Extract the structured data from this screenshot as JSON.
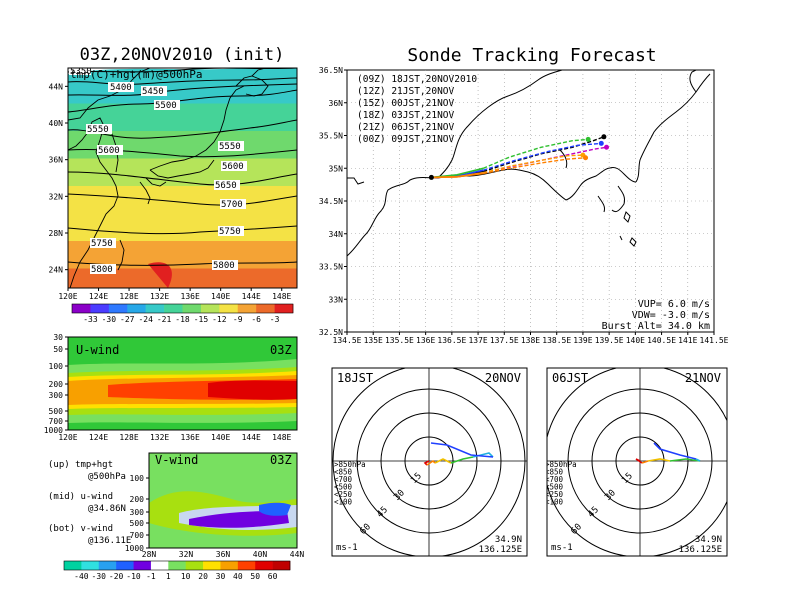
{
  "left_map": {
    "title": "03Z,20NOV2010 (init)",
    "overlay_label": "tmp(C)+hgt(m)@500hPa",
    "lon_ticks": [
      "120E",
      "124E",
      "128E",
      "132E",
      "136E",
      "140E",
      "144E",
      "148E"
    ],
    "lat_ticks": [
      "44N",
      "40N",
      "36N",
      "32N",
      "28N",
      "24N"
    ],
    "contour_labels": [
      "5350",
      "5400",
      "5450",
      "5500",
      "5550",
      "5600",
      "5550",
      "5600",
      "5650",
      "5700",
      "5750",
      "5750",
      "5800",
      "5800"
    ],
    "colorbar_ticks": [
      "-33",
      "-30",
      "-27",
      "-24",
      "-21",
      "-18",
      "-15",
      "-12",
      "-9",
      "-6",
      "-3"
    ],
    "colorbar_colors": [
      "#8b00c8",
      "#4b3cff",
      "#2f79ff",
      "#27a8e8",
      "#37c9c8",
      "#45d398",
      "#6fd96d",
      "#b5e45a",
      "#f4e245",
      "#f4a335",
      "#ec6a2a",
      "#e12020"
    ]
  },
  "uwind_panel": {
    "label": "U-wind",
    "time": "03Z",
    "y_ticks": [
      "30",
      "50",
      "100",
      "200",
      "300",
      "500",
      "700",
      "1000"
    ],
    "x_ticks": [
      "120E",
      "124E",
      "128E",
      "132E",
      "136E",
      "140E",
      "144E",
      "148E"
    ]
  },
  "vwind_panel": {
    "label": "V-wind",
    "time": "03Z",
    "y_ticks": [
      "100",
      "200",
      "300",
      "500",
      "700",
      "1000"
    ],
    "x_ticks": [
      "28N",
      "32N",
      "36N",
      "40N",
      "44N"
    ]
  },
  "side_notes": [
    {
      "key": "(up) tmp+hgt",
      "val": "@500hPa"
    },
    {
      "key": "(mid) u-wind",
      "val": "@34.86N"
    },
    {
      "key": "(bot) v-wind",
      "val": "@136.11E"
    }
  ],
  "wind_colorbar": {
    "ticks": [
      "-40",
      "-30",
      "-20",
      "-10",
      "-1",
      "1",
      "10",
      "20",
      "30",
      "40",
      "50",
      "60"
    ],
    "colors": [
      "#00d2a0",
      "#30e0e0",
      "#28a0f0",
      "#2060ff",
      "#7000e0",
      "#ffffff",
      "#78e060",
      "#a8e010",
      "#ffe000",
      "#f8a000",
      "#ff4000",
      "#e00000",
      "#c00000"
    ]
  },
  "tracking": {
    "title": "Sonde Tracking Forecast",
    "lat_ticks": [
      "36.5N",
      "36N",
      "35.5N",
      "35N",
      "34.5N",
      "34N",
      "33.5N",
      "33N",
      "32.5N"
    ],
    "lon_ticks": [
      "134.5E",
      "135E",
      "135.5E",
      "136E",
      "136.5E",
      "137E",
      "137.5E",
      "138E",
      "138.5E",
      "139E",
      "139.5E",
      "140E",
      "140.5E",
      "141E",
      "141.5E"
    ],
    "legend": [
      {
        "text": "(09Z)  18JST,20NOV2010",
        "color": "#000000"
      },
      {
        "text": "(12Z)  21JST,20NOV",
        "color": "#c000c0"
      },
      {
        "text": "(15Z)  00JST,21NOV",
        "color": "#2040ff"
      },
      {
        "text": "(18Z)  03JST,21NOV",
        "color": "#30c030"
      },
      {
        "text": "(21Z)  06JST,21NOV",
        "color": "#ffa000"
      },
      {
        "text": "(00Z)  09JST,21NOV",
        "color": "#ff8000"
      }
    ],
    "vup": "VUP=  6.0  m/s",
    "vdw": "VDW= -3.0  m/s",
    "burst": "Burst Alt=  34.0  km"
  },
  "hodographs": [
    {
      "time": "18JST",
      "date": "20NOV",
      "ring_labels": [
        "15",
        "30",
        "45",
        "60"
      ],
      "levels": [
        ">850hPa",
        "<850",
        "<700",
        "<500",
        "<250",
        "<100"
      ],
      "unit": "ms-1",
      "lat": "34.9N",
      "lon": "136.125E"
    },
    {
      "time": "06JST",
      "date": "21NOV",
      "ring_labels": [
        "15",
        "30",
        "45",
        "60"
      ],
      "levels": [
        ">850hPa",
        "<850",
        "<700",
        "<500",
        "<250",
        "<100"
      ],
      "unit": "ms-1",
      "lat": "34.9N",
      "lon": "136.125E"
    }
  ],
  "chart_data": [
    {
      "type": "heatmap",
      "title": "03Z,20NOV2010 (init)",
      "subtitle": "tmp(C)+hgt(m)@500hPa",
      "x_range": [
        120,
        150
      ],
      "y_range": [
        22,
        46
      ],
      "temp_bands_C": [
        {
          "lat_from": 22,
          "lat_to": 25,
          "value": -6
        },
        {
          "lat_from": 25,
          "lat_to": 28,
          "value": -9
        },
        {
          "lat_from": 28,
          "lat_to": 31,
          "value": -10
        },
        {
          "lat_from": 31,
          "lat_to": 34,
          "value": -12
        },
        {
          "lat_from": 34,
          "lat_to": 37,
          "value": -15
        },
        {
          "lat_from": 37,
          "lat_to": 40,
          "value": -18
        },
        {
          "lat_from": 40,
          "lat_to": 43,
          "value": -21
        },
        {
          "lat_from": 43,
          "lat_to": 46,
          "value": -24
        }
      ],
      "height_contours_m": [
        5350,
        5400,
        5450,
        5500,
        5550,
        5600,
        5650,
        5700,
        5750,
        5800
      ]
    },
    {
      "type": "heatmap",
      "title": "U-wind",
      "x_range": [
        120,
        150
      ],
      "y_levels_hPa": [
        1000,
        700,
        500,
        300,
        200,
        100,
        50,
        30
      ],
      "jet_core": {
        "lon_from": 140,
        "lon_to": 150,
        "level_from_hPa": 200,
        "level_to_hPa": 300,
        "value": 60
      }
    },
    {
      "type": "heatmap",
      "title": "V-wind",
      "x_range": [
        28,
        44
      ],
      "y_levels_hPa": [
        1000,
        700,
        500,
        300,
        200,
        100
      ]
    },
    {
      "type": "line",
      "title": "Sonde Tracking Forecast",
      "x_range": [
        134.5,
        141.5
      ],
      "y_range": [
        32.5,
        36.5
      ],
      "launch": [
        136.11,
        34.86
      ],
      "series": [
        {
          "name": "(09Z)  18JST,20NOV2010",
          "x": [
            136.11,
            136.6,
            137.1,
            137.6,
            138.2,
            138.8,
            139.2,
            139.4
          ],
          "y": [
            34.86,
            34.88,
            34.95,
            35.08,
            35.22,
            35.32,
            35.42,
            35.48
          ]
        },
        {
          "name": "(12Z)  21JST,20NOV",
          "x": [
            136.11,
            136.6,
            137.1,
            137.6,
            138.2,
            138.8,
            139.2,
            139.45
          ],
          "y": [
            34.86,
            34.87,
            34.93,
            35.02,
            35.12,
            35.22,
            35.29,
            35.32
          ]
        },
        {
          "name": "(15Z)  00JST,21NOV",
          "x": [
            136.11,
            136.6,
            137.1,
            137.7,
            138.3,
            138.9,
            139.35
          ],
          "y": [
            34.86,
            34.88,
            34.97,
            35.12,
            35.25,
            35.35,
            35.38
          ]
        },
        {
          "name": "(18Z)  03JST,21NOV",
          "x": [
            136.11,
            136.6,
            137.1,
            137.6,
            138.2,
            138.8,
            139.1
          ],
          "y": [
            34.86,
            34.9,
            35.0,
            35.17,
            35.32,
            35.42,
            35.44
          ]
        },
        {
          "name": "(21Z)  06JST,21NOV",
          "x": [
            136.11,
            136.6,
            137.1,
            137.6,
            138.2,
            138.7,
            139.0
          ],
          "y": [
            34.86,
            34.87,
            34.93,
            35.03,
            35.12,
            35.19,
            35.2
          ]
        },
        {
          "name": "(00Z)  09JST,21NOV",
          "x": [
            136.11,
            136.6,
            137.1,
            137.6,
            138.2,
            138.7,
            139.05
          ],
          "y": [
            34.86,
            34.87,
            34.92,
            35.0,
            35.08,
            35.14,
            35.16
          ]
        }
      ]
    }
  ]
}
